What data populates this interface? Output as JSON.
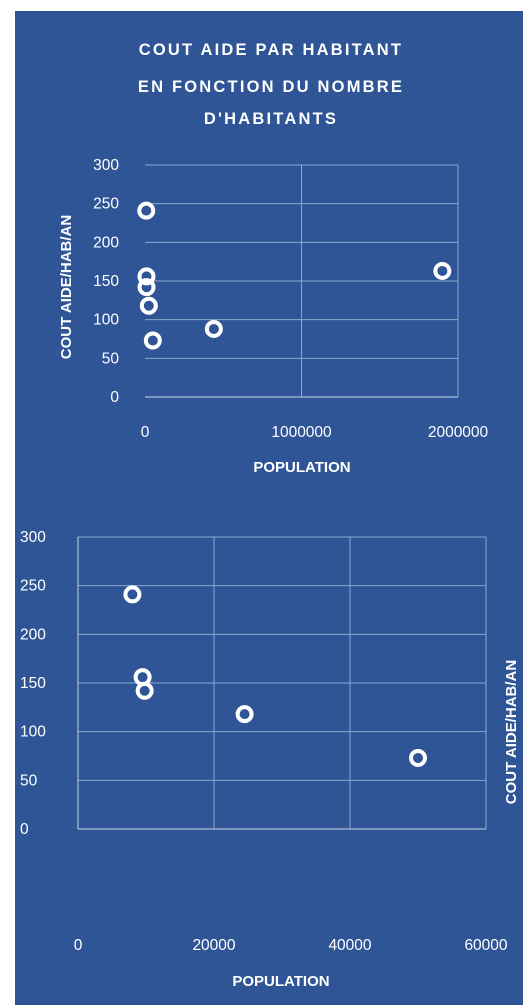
{
  "chart_data": [
    {
      "type": "scatter",
      "title": [
        "COUT AIDE PAR HABITANT",
        "EN FONCTION DU NOMBRE",
        "D'HABITANTS"
      ],
      "xlabel": "POPULATION",
      "ylabel": "COUT AIDE/HAB/AN",
      "xlim": [
        0,
        2000000
      ],
      "ylim": [
        0,
        300
      ],
      "x_ticks": [
        0,
        1000000,
        2000000
      ],
      "x_tick_labels": [
        "0",
        "1000000",
        "2000000"
      ],
      "y_ticks": [
        0,
        50,
        100,
        150,
        200,
        250,
        300
      ],
      "y_tick_labels": [
        "0",
        "50",
        "100",
        "150",
        "200",
        "250",
        "300"
      ],
      "grid": true,
      "legend": "none",
      "series": [
        {
          "points": [
            {
              "x": 8000,
              "y": 241
            },
            {
              "x": 9500,
              "y": 156
            },
            {
              "x": 9800,
              "y": 142
            },
            {
              "x": 24500,
              "y": 118
            },
            {
              "x": 50000,
              "y": 73
            },
            {
              "x": 440000,
              "y": 88
            },
            {
              "x": 1900000,
              "y": 163
            }
          ]
        }
      ]
    },
    {
      "type": "scatter",
      "title": [],
      "xlabel": "POPULATION",
      "ylabel": "COUT AIDE/HAB/AN",
      "xlim": [
        0,
        60000
      ],
      "ylim": [
        0,
        300
      ],
      "x_ticks": [
        0,
        20000,
        40000,
        60000
      ],
      "x_tick_labels": [
        "0",
        "20000",
        "40000",
        "60000"
      ],
      "y_ticks": [
        0,
        50,
        100,
        150,
        200,
        250,
        300
      ],
      "y_tick_labels": [
        "0",
        "50",
        "100",
        "150",
        "200",
        "250",
        "300"
      ],
      "grid": true,
      "legend": "none",
      "series": [
        {
          "points": [
            {
              "x": 8000,
              "y": 241
            },
            {
              "x": 9500,
              "y": 156
            },
            {
              "x": 9800,
              "y": 142
            },
            {
              "x": 24500,
              "y": 118
            },
            {
              "x": 50000,
              "y": 73
            }
          ]
        }
      ]
    }
  ]
}
